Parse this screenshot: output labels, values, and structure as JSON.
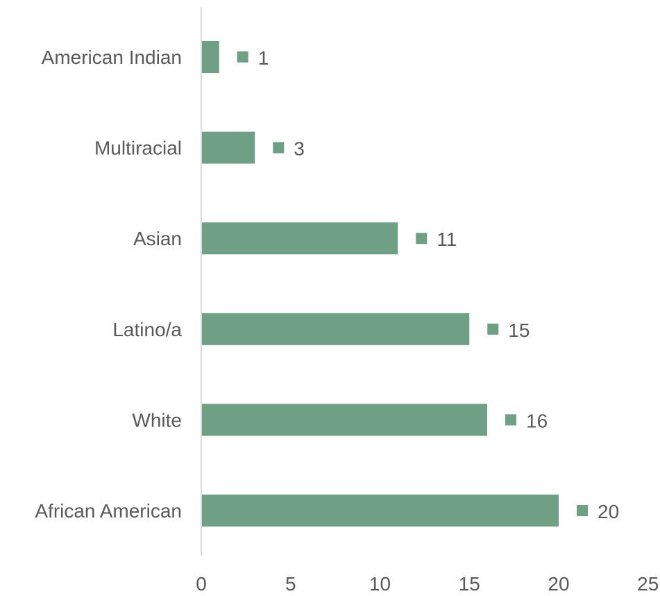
{
  "chart_data": {
    "type": "bar",
    "orientation": "horizontal",
    "categories": [
      "American Indian",
      "Multiracial",
      "Asian",
      "Latino/a",
      "White",
      "African American"
    ],
    "values": [
      1,
      3,
      11,
      15,
      16,
      20
    ],
    "data_labels": [
      "1",
      "3",
      "11",
      "15",
      "16",
      "20"
    ],
    "x_ticks": [
      "0",
      "5",
      "10",
      "15",
      "20",
      "25"
    ],
    "xlim": [
      0,
      25
    ],
    "title": "",
    "xlabel": "",
    "ylabel": "",
    "grid": false,
    "legend": "none",
    "colors": {
      "bar": "#6fa085",
      "axis": "#d9d9d9",
      "text": "#595959"
    }
  }
}
